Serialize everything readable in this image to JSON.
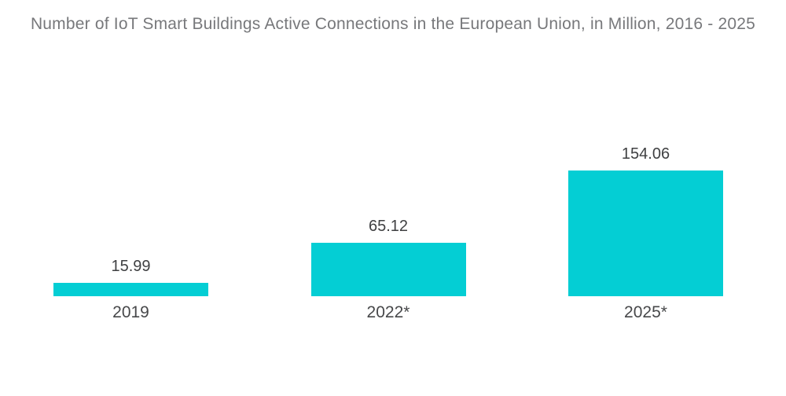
{
  "chart_data": {
    "type": "bar",
    "title": "Number of IoT Smart Buildings Active Connections in the European Union, in Million, 2016 - 2025",
    "categories": [
      "2019",
      "2022*",
      "2025*"
    ],
    "values": [
      15.99,
      65.12,
      154.06
    ],
    "value_labels": [
      "15.99",
      "65.12",
      "154.06"
    ],
    "xlabel": "",
    "ylabel": "",
    "ylim": [
      0,
      160
    ],
    "grid": false,
    "legend": "none",
    "bar_color": "#04ced4"
  },
  "colors": {
    "background": "#ffffff",
    "bar": "#04ced4",
    "title_text": "#77787b",
    "value_text": "#3f4042",
    "category_text": "#47484a"
  }
}
